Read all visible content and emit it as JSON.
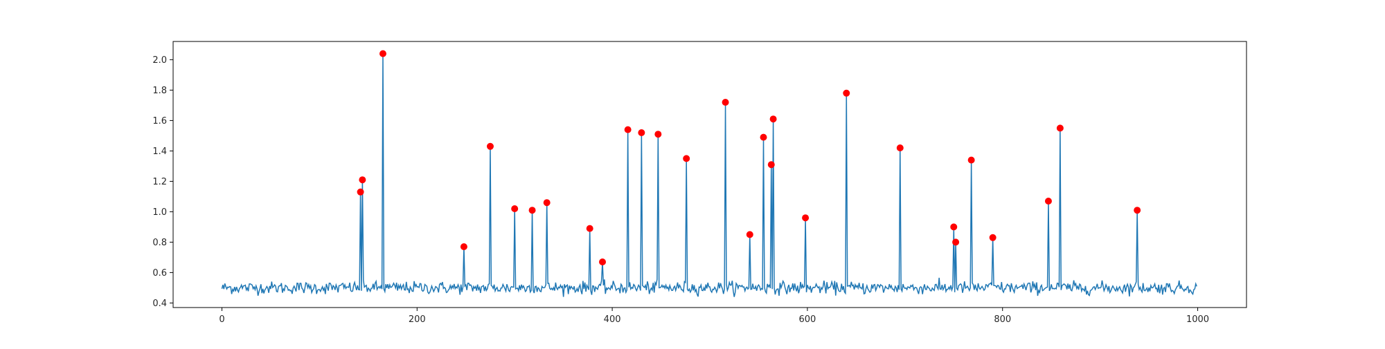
{
  "chart_data": {
    "type": "line",
    "title": "",
    "xlabel": "",
    "ylabel": "",
    "xlim": [
      -50,
      1050
    ],
    "ylim": [
      0.37,
      2.12
    ],
    "grid": false,
    "legend": "none",
    "x_ticks": [
      0,
      200,
      400,
      600,
      800,
      1000
    ],
    "x_tick_labels": [
      "0",
      "200",
      "400",
      "600",
      "800",
      "1000"
    ],
    "y_ticks": [
      0.4,
      0.6,
      0.8,
      1.0,
      1.2,
      1.4,
      1.6,
      1.8,
      2.0
    ],
    "y_tick_labels": [
      "0.4",
      "0.6",
      "0.8",
      "1.0",
      "1.2",
      "1.4",
      "1.6",
      "1.8",
      "2.0"
    ],
    "series": [
      {
        "kind": "line",
        "color": "#1f77b4",
        "n_points": 1000,
        "baseline_mean": 0.5,
        "baseline_noise_std": 0.02,
        "spikes": [
          [
            142,
            1.13
          ],
          [
            144,
            1.21
          ],
          [
            165,
            2.04
          ],
          [
            248,
            0.77
          ],
          [
            275,
            1.43
          ],
          [
            300,
            1.02
          ],
          [
            318,
            1.01
          ],
          [
            333,
            1.06
          ],
          [
            377,
            0.89
          ],
          [
            390,
            0.67
          ],
          [
            416,
            1.54
          ],
          [
            430,
            1.52
          ],
          [
            447,
            1.51
          ],
          [
            476,
            1.35
          ],
          [
            516,
            1.72
          ],
          [
            541,
            0.85
          ],
          [
            555,
            1.49
          ],
          [
            563,
            1.31
          ],
          [
            565,
            1.61
          ],
          [
            598,
            0.96
          ],
          [
            640,
            1.78
          ],
          [
            695,
            1.42
          ],
          [
            750,
            0.9
          ],
          [
            752,
            0.8
          ],
          [
            768,
            1.34
          ],
          [
            790,
            0.83
          ],
          [
            847,
            1.07
          ],
          [
            859,
            1.55
          ],
          [
            938,
            1.01
          ]
        ]
      },
      {
        "kind": "scatter",
        "marker": "o",
        "color": "#ff0000",
        "points": [
          [
            142,
            1.13
          ],
          [
            144,
            1.21
          ],
          [
            165,
            2.04
          ],
          [
            248,
            0.77
          ],
          [
            275,
            1.43
          ],
          [
            300,
            1.02
          ],
          [
            318,
            1.01
          ],
          [
            333,
            1.06
          ],
          [
            377,
            0.89
          ],
          [
            390,
            0.67
          ],
          [
            416,
            1.54
          ],
          [
            430,
            1.52
          ],
          [
            447,
            1.51
          ],
          [
            476,
            1.35
          ],
          [
            516,
            1.72
          ],
          [
            541,
            0.85
          ],
          [
            555,
            1.49
          ],
          [
            563,
            1.31
          ],
          [
            565,
            1.61
          ],
          [
            598,
            0.96
          ],
          [
            640,
            1.78
          ],
          [
            695,
            1.42
          ],
          [
            750,
            0.9
          ],
          [
            752,
            0.8
          ],
          [
            768,
            1.34
          ],
          [
            790,
            0.83
          ],
          [
            847,
            1.07
          ],
          [
            859,
            1.55
          ],
          [
            938,
            1.01
          ]
        ]
      }
    ]
  }
}
